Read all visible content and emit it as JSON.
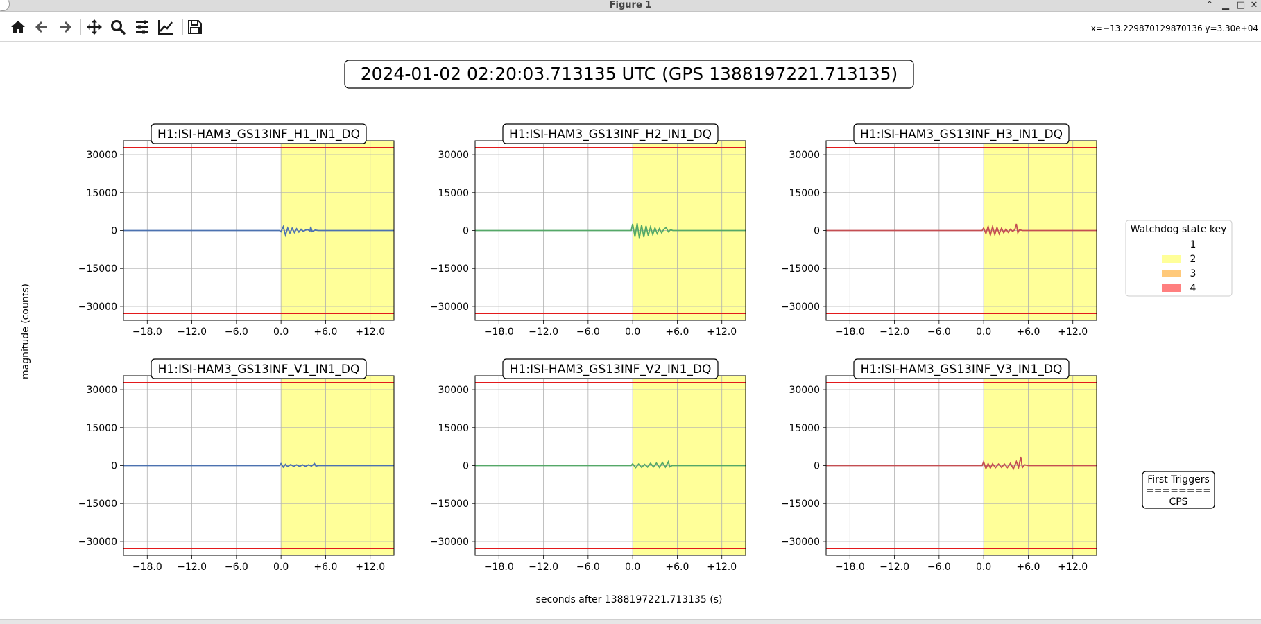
{
  "window": {
    "title": "Figure 1"
  },
  "toolbar": {
    "buttons": [
      "home-button",
      "back-button",
      "forward-button",
      "pan-button",
      "zoom-button",
      "configure-subplots-button",
      "edit-axes-button",
      "save-button"
    ],
    "coords": "x=−13.229870129870136 y=3.30e+04"
  },
  "figure": {
    "suptitle": "2024-01-02 02:20:03.713135 UTC (GPS 1388197221.713135)",
    "ylabel": "magnitude (counts)",
    "xlabel": "seconds after 1388197221.713135 (s)"
  },
  "legend": {
    "title": "Watchdog state key",
    "entries": [
      {
        "label": "1",
        "color": "#ffffff"
      },
      {
        "label": "2",
        "color": "#ffff99"
      },
      {
        "label": "3",
        "color": "#ffc97a"
      },
      {
        "label": "4",
        "color": "#ff7f7f"
      }
    ]
  },
  "triggers_box": {
    "lines": [
      "First Triggers",
      "========",
      "CPS"
    ]
  },
  "chart_data": [
    {
      "type": "line",
      "title": "H1:ISI-HAM3_GS13INF_H1_IN1_DQ",
      "color": "#4c72b0",
      "xlim": [
        -21.2,
        15.2
      ],
      "ylim": [
        -35500,
        35500
      ],
      "xticks": [
        -18,
        -12,
        -6,
        0,
        6,
        12
      ],
      "xtick_labels": [
        "−18.0",
        "−12.0",
        "−6.0",
        "0.0",
        "+6.0",
        "+12.0"
      ],
      "yticks": [
        30000,
        15000,
        0,
        -15000,
        -30000
      ],
      "ytick_labels": [
        "30000",
        "15000",
        "0",
        "−15000",
        "−30000"
      ],
      "thresholds": [
        32768,
        -32768
      ],
      "state_spans": [
        {
          "state": 2,
          "x": [
            0,
            15.2
          ]
        }
      ],
      "x": [
        -21.2,
        -18,
        -12,
        -6,
        -0.2,
        0,
        0.3,
        0.6,
        0.9,
        1.2,
        1.5,
        1.8,
        2.1,
        2.4,
        2.7,
        3.0,
        3.3,
        3.6,
        3.9,
        4.0,
        4.2,
        4.6,
        5.0,
        6,
        9,
        12,
        15.2
      ],
      "y": [
        0,
        0,
        0,
        0,
        0,
        -500,
        1500,
        -1800,
        1000,
        -1000,
        900,
        -800,
        700,
        -600,
        500,
        -300,
        200,
        400,
        -200,
        1500,
        -400,
        200,
        0,
        0,
        0,
        0,
        0
      ]
    },
    {
      "type": "line",
      "title": "H1:ISI-HAM3_GS13INF_H2_IN1_DQ",
      "color": "#55a868",
      "xlim": [
        -21.2,
        15.2
      ],
      "ylim": [
        -35500,
        35500
      ],
      "xticks": [
        -18,
        -12,
        -6,
        0,
        6,
        12
      ],
      "xtick_labels": [
        "−18.0",
        "−12.0",
        "−6.0",
        "0.0",
        "+6.0",
        "+12.0"
      ],
      "yticks": [
        30000,
        15000,
        0,
        -15000,
        -30000
      ],
      "ytick_labels": [
        "30000",
        "15000",
        "0",
        "−15000",
        "−30000"
      ],
      "thresholds": [
        32768,
        -32768
      ],
      "state_spans": [
        {
          "state": 2,
          "x": [
            0,
            15.2
          ]
        }
      ],
      "x": [
        -21.2,
        -18,
        -12,
        -6,
        -0.2,
        0,
        0.3,
        0.6,
        0.9,
        1.2,
        1.5,
        1.8,
        2.1,
        2.4,
        2.7,
        3.0,
        3.3,
        3.6,
        3.9,
        4.2,
        4.5,
        4.8,
        5.1,
        5.4,
        6,
        9,
        12,
        15.2
      ],
      "y": [
        0,
        0,
        0,
        0,
        0,
        2600,
        -2400,
        2800,
        -3000,
        2200,
        -2600,
        1800,
        -2000,
        1400,
        -1600,
        1000,
        -1200,
        700,
        -900,
        500,
        1200,
        -500,
        300,
        0,
        0,
        0,
        0,
        0
      ]
    },
    {
      "type": "line",
      "title": "H1:ISI-HAM3_GS13INF_H3_IN1_DQ",
      "color": "#c44e52",
      "xlim": [
        -21.2,
        15.2
      ],
      "ylim": [
        -35500,
        35500
      ],
      "xticks": [
        -18,
        -12,
        -6,
        0,
        6,
        12
      ],
      "xtick_labels": [
        "−18.0",
        "−12.0",
        "−6.0",
        "0.0",
        "+6.0",
        "+12.0"
      ],
      "yticks": [
        30000,
        15000,
        0,
        -15000,
        -30000
      ],
      "ytick_labels": [
        "30000",
        "15000",
        "0",
        "−15000",
        "−30000"
      ],
      "thresholds": [
        32768,
        -32768
      ],
      "state_spans": [
        {
          "state": 2,
          "x": [
            0,
            15.2
          ]
        }
      ],
      "x": [
        -21.2,
        -18,
        -12,
        -6,
        -0.2,
        0,
        0.3,
        0.6,
        0.9,
        1.2,
        1.5,
        1.8,
        2.1,
        2.4,
        2.7,
        3.0,
        3.3,
        3.6,
        3.9,
        4.2,
        4.4,
        4.6,
        4.8,
        5.2,
        6,
        9,
        12,
        15.2
      ],
      "y": [
        0,
        0,
        0,
        0,
        0,
        1000,
        -1200,
        1600,
        -1800,
        1500,
        -1600,
        1200,
        -1300,
        900,
        -900,
        600,
        -700,
        500,
        -300,
        300,
        2600,
        -900,
        300,
        0,
        0,
        0,
        0,
        0
      ]
    },
    {
      "type": "line",
      "title": "H1:ISI-HAM3_GS13INF_V1_IN1_DQ",
      "color": "#4c72b0",
      "xlim": [
        -21.2,
        15.2
      ],
      "ylim": [
        -35500,
        35500
      ],
      "xticks": [
        -18,
        -12,
        -6,
        0,
        6,
        12
      ],
      "xtick_labels": [
        "−18.0",
        "−12.0",
        "−6.0",
        "0.0",
        "+6.0",
        "+12.0"
      ],
      "yticks": [
        30000,
        15000,
        0,
        -15000,
        -30000
      ],
      "ytick_labels": [
        "30000",
        "15000",
        "0",
        "−15000",
        "−30000"
      ],
      "thresholds": [
        32768,
        -32768
      ],
      "state_spans": [
        {
          "state": 2,
          "x": [
            0,
            15.2
          ]
        }
      ],
      "x": [
        -21.2,
        -18,
        -12,
        -6,
        -0.2,
        0,
        0.3,
        0.6,
        0.9,
        1.3,
        1.7,
        2.1,
        2.5,
        2.9,
        3.3,
        3.7,
        4.1,
        4.5,
        4.7,
        5.0,
        6,
        9,
        12,
        15.2
      ],
      "y": [
        0,
        0,
        0,
        0,
        0,
        800,
        -600,
        500,
        -400,
        400,
        -300,
        300,
        -300,
        300,
        -300,
        300,
        -200,
        800,
        -200,
        0,
        0,
        0,
        0,
        0
      ]
    },
    {
      "type": "line",
      "title": "H1:ISI-HAM3_GS13INF_V2_IN1_DQ",
      "color": "#55a868",
      "xlim": [
        -21.2,
        15.2
      ],
      "ylim": [
        -35500,
        35500
      ],
      "xticks": [
        -18,
        -12,
        -6,
        0,
        6,
        12
      ],
      "xtick_labels": [
        "−18.0",
        "−12.0",
        "−6.0",
        "0.0",
        "+6.0",
        "+12.0"
      ],
      "yticks": [
        30000,
        15000,
        0,
        -15000,
        -30000
      ],
      "ytick_labels": [
        "30000",
        "15000",
        "0",
        "−15000",
        "−30000"
      ],
      "thresholds": [
        32768,
        -32768
      ],
      "state_spans": [
        {
          "state": 2,
          "x": [
            0,
            15.2
          ]
        }
      ],
      "x": [
        -21.2,
        -18,
        -12,
        -6,
        -0.2,
        0,
        0.4,
        0.8,
        1.2,
        1.6,
        2.0,
        2.4,
        2.8,
        3.2,
        3.6,
        4.0,
        4.4,
        4.8,
        5.0,
        5.3,
        6,
        9,
        12,
        15.2
      ],
      "y": [
        0,
        0,
        0,
        0,
        0,
        700,
        -800,
        600,
        -700,
        500,
        -600,
        900,
        -500,
        1000,
        -700,
        1200,
        -600,
        1500,
        -500,
        0,
        0,
        0,
        0,
        0
      ]
    },
    {
      "type": "line",
      "title": "H1:ISI-HAM3_GS13INF_V3_IN1_DQ",
      "color": "#c44e52",
      "xlim": [
        -21.2,
        15.2
      ],
      "ylim": [
        -35500,
        35500
      ],
      "xticks": [
        -18,
        -12,
        -6,
        0,
        6,
        12
      ],
      "xtick_labels": [
        "−18.0",
        "−12.0",
        "−6.0",
        "0.0",
        "+6.0",
        "+12.0"
      ],
      "yticks": [
        30000,
        15000,
        0,
        -15000,
        -30000
      ],
      "ytick_labels": [
        "30000",
        "15000",
        "0",
        "−15000",
        "−30000"
      ],
      "thresholds": [
        32768,
        -32768
      ],
      "state_spans": [
        {
          "state": 2,
          "x": [
            0,
            15.2
          ]
        }
      ],
      "x": [
        -21.2,
        -18,
        -12,
        -6,
        -0.2,
        0,
        0.3,
        0.6,
        0.9,
        1.2,
        1.6,
        2.0,
        2.4,
        2.8,
        3.2,
        3.6,
        4.0,
        4.4,
        4.7,
        5.0,
        5.2,
        5.5,
        6,
        9,
        12,
        15.2
      ],
      "y": [
        0,
        0,
        0,
        0,
        0,
        1500,
        -1200,
        800,
        -1000,
        700,
        -800,
        600,
        -700,
        600,
        -800,
        900,
        -1300,
        1600,
        -700,
        3400,
        -800,
        300,
        0,
        0,
        0,
        0
      ]
    }
  ]
}
